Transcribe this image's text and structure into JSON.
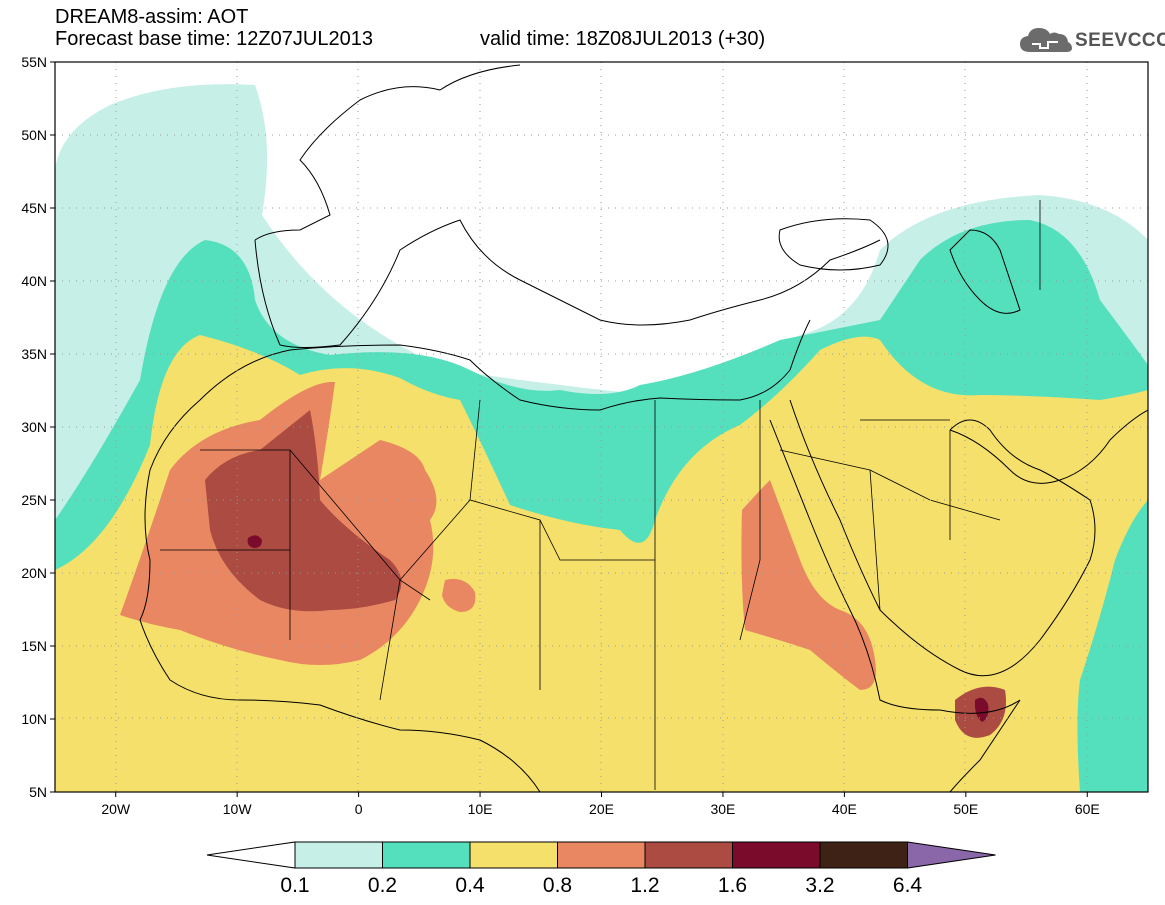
{
  "header": {
    "line1": "DREAM8-assim: AOT",
    "line2": "Forecast base time: 12Z07JUL2013",
    "valid": "valid time: 18Z08JUL2013 (+30)"
  },
  "logo": {
    "text": "SEEVCCC",
    "icon": "cloud-icon"
  },
  "map": {
    "lat_range": [
      5,
      55
    ],
    "lon_range": [
      -25,
      65
    ],
    "lat_ticks": [
      "5N",
      "10N",
      "15N",
      "20N",
      "25N",
      "30N",
      "35N",
      "40N",
      "45N",
      "50N",
      "55N"
    ],
    "lon_ticks": [
      "20W",
      "10W",
      "0",
      "10E",
      "20E",
      "30E",
      "40E",
      "50E",
      "60E"
    ],
    "grid": "dotted"
  },
  "legend": {
    "labels": [
      "0.1",
      "0.2",
      "0.4",
      "0.8",
      "1.2",
      "1.6",
      "3.2",
      "6.4"
    ],
    "colors": [
      "#ffffff",
      "#c6efe8",
      "#55e0bd",
      "#f4e06a",
      "#e98762",
      "#ab4b42",
      "#7a0b2b",
      "#3e2215",
      "#8a67a8"
    ]
  }
}
